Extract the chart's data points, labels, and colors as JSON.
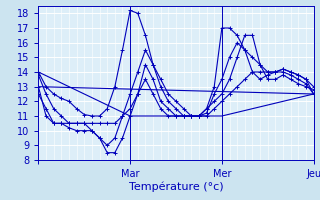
{
  "title": "",
  "xlabel": "Température (°c)",
  "ylabel": "",
  "xlim": [
    0,
    72
  ],
  "ylim": [
    8,
    18.5
  ],
  "yticks": [
    8,
    9,
    10,
    11,
    12,
    13,
    14,
    15,
    16,
    17,
    18
  ],
  "xticks": [
    0,
    24,
    48,
    72
  ],
  "xticklabels": [
    "",
    "Mar",
    "Mer",
    "Jeu"
  ],
  "bg_color": "#cce4f0",
  "plot_bg_color": "#ddeef8",
  "grid_color": "#ffffff",
  "line_color": "#0000bb",
  "series": [
    [
      0,
      14.0,
      2,
      13.0,
      4,
      12.5,
      6,
      12.2,
      8,
      12.0,
      10,
      11.5,
      12,
      11.1,
      14,
      11.0,
      16,
      11.0,
      18,
      11.5,
      20,
      13.0,
      22,
      15.5,
      24,
      18.2,
      26,
      18.0,
      28,
      16.5,
      30,
      14.5,
      32,
      13.0,
      34,
      12.0,
      36,
      11.5,
      38,
      11.0,
      40,
      11.0,
      42,
      11.0,
      44,
      11.5,
      46,
      13.0,
      48,
      17.0,
      50,
      17.0,
      52,
      16.5,
      54,
      15.5,
      56,
      14.0,
      58,
      13.5,
      60,
      13.8,
      62,
      14.0,
      64,
      14.0,
      66,
      13.8,
      68,
      13.5,
      70,
      13.2,
      72,
      12.5
    ],
    [
      0,
      13.8,
      2,
      12.5,
      4,
      11.5,
      6,
      11.0,
      8,
      10.5,
      10,
      10.5,
      12,
      10.5,
      14,
      10.0,
      16,
      9.5,
      18,
      9.0,
      20,
      9.5,
      22,
      11.0,
      24,
      12.5,
      26,
      14.0,
      28,
      15.5,
      30,
      14.5,
      32,
      13.5,
      34,
      12.5,
      36,
      12.0,
      38,
      11.5,
      40,
      11.0,
      42,
      11.0,
      44,
      11.2,
      46,
      12.5,
      48,
      13.5,
      50,
      15.0,
      52,
      16.0,
      54,
      15.5,
      56,
      15.0,
      58,
      14.5,
      60,
      14.0,
      62,
      14.0,
      64,
      14.2,
      66,
      14.0,
      68,
      13.8,
      70,
      13.5,
      72,
      13.0
    ],
    [
      0,
      13.0,
      2,
      11.0,
      4,
      10.5,
      6,
      10.5,
      8,
      10.2,
      10,
      10.0,
      12,
      10.0,
      14,
      10.0,
      16,
      9.5,
      18,
      8.5,
      20,
      8.5,
      22,
      9.5,
      24,
      11.0,
      26,
      12.5,
      28,
      14.5,
      30,
      13.5,
      32,
      12.0,
      34,
      11.5,
      36,
      11.0,
      38,
      11.0,
      40,
      11.0,
      42,
      11.0,
      44,
      11.5,
      46,
      12.0,
      48,
      12.5,
      50,
      13.5,
      52,
      15.0,
      54,
      16.5,
      56,
      16.5,
      58,
      14.5,
      60,
      13.5,
      62,
      13.5,
      64,
      13.8,
      66,
      13.5,
      68,
      13.2,
      70,
      13.0,
      72,
      12.8
    ],
    [
      0,
      12.5,
      2,
      11.5,
      4,
      10.5,
      6,
      10.5,
      8,
      10.5,
      10,
      10.5,
      12,
      10.5,
      14,
      10.5,
      16,
      10.5,
      18,
      10.5,
      20,
      10.5,
      22,
      11.0,
      24,
      11.5,
      26,
      12.5,
      28,
      13.5,
      30,
      12.5,
      32,
      11.5,
      34,
      11.0,
      36,
      11.0,
      38,
      11.0,
      40,
      11.0,
      42,
      11.0,
      44,
      11.0,
      46,
      11.5,
      48,
      12.0,
      50,
      12.5,
      52,
      13.0,
      54,
      13.5,
      56,
      14.0,
      58,
      14.0,
      60,
      14.0,
      62,
      14.0,
      64,
      14.2,
      66,
      14.0,
      68,
      13.8,
      70,
      13.5,
      72,
      12.5
    ],
    [
      0,
      14.0,
      24,
      11.0,
      48,
      11.0,
      72,
      12.5
    ],
    [
      0,
      13.0,
      72,
      12.5
    ]
  ]
}
